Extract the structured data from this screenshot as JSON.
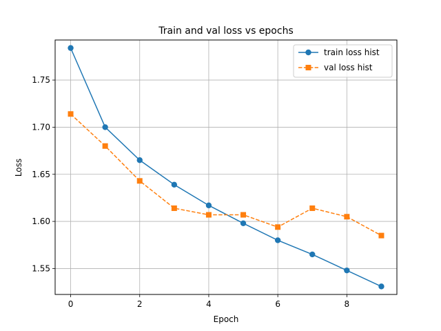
{
  "chart_data": {
    "type": "line",
    "title": "Train and val loss vs epochs",
    "xlabel": "Epoch",
    "ylabel": "Loss",
    "x": [
      0,
      1,
      2,
      3,
      4,
      5,
      6,
      7,
      8,
      9
    ],
    "xlim": [
      -0.45,
      9.45
    ],
    "ylim": [
      1.5225,
      1.7925
    ],
    "x_ticks": [
      0,
      2,
      4,
      6,
      8
    ],
    "x_tick_labels": [
      "0",
      "2",
      "4",
      "6",
      "8"
    ],
    "y_ticks": [
      1.55,
      1.6,
      1.65,
      1.7,
      1.75
    ],
    "y_tick_labels": [
      "1.55",
      "1.60",
      "1.65",
      "1.70",
      "1.75"
    ],
    "grid": true,
    "legend_position": "top-right",
    "series": [
      {
        "name": "train loss hist",
        "color": "#1f77b4",
        "marker": "circle",
        "line_style": "solid",
        "values": [
          1.784,
          1.7,
          1.665,
          1.639,
          1.617,
          1.598,
          1.58,
          1.565,
          1.548,
          1.531
        ]
      },
      {
        "name": "val loss hist",
        "color": "#ff7f0e",
        "marker": "square",
        "line_style": "dashed",
        "values": [
          1.714,
          1.68,
          1.643,
          1.614,
          1.607,
          1.607,
          1.594,
          1.614,
          1.605,
          1.585
        ]
      }
    ]
  }
}
